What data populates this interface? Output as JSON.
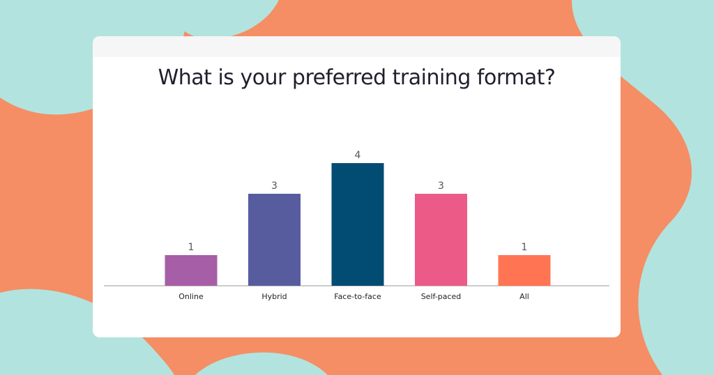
{
  "colors": {
    "background_orange": "#f58e64",
    "background_teal": "#b3e3df",
    "card": "#ffffff"
  },
  "chart_data": {
    "type": "bar",
    "title": "What is your preferred training format?",
    "categories": [
      "Online",
      "Hybrid",
      "Face-to-face",
      "Self-paced",
      "All"
    ],
    "values": [
      1,
      3,
      4,
      3,
      1
    ],
    "colors": [
      "#a65ea6",
      "#575c9e",
      "#024c73",
      "#ec5a87",
      "#ff7553"
    ],
    "ylim": [
      0,
      4
    ],
    "grid": false,
    "legend": "none",
    "data_labels": true
  }
}
